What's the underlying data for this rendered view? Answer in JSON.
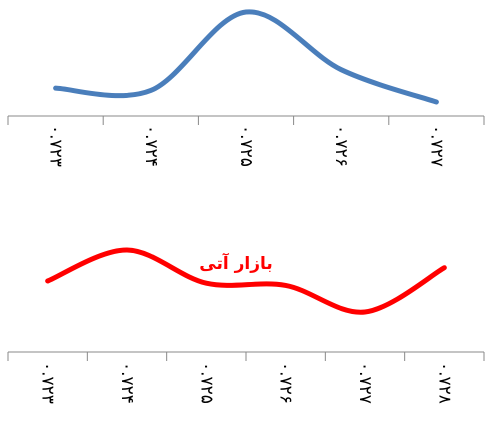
{
  "chart_data": [
    {
      "type": "line",
      "x": [
        "۰.۷۲۳",
        "۰.۷۲۴",
        "۰.۷۲۵",
        "۰.۷۲۶",
        "۰.۷۲۷"
      ],
      "series": [
        {
          "values": [
            0.012,
            0.01,
            0.078,
            0.028,
            0.0
          ],
          "color": "#4a7ebb"
        }
      ],
      "title": "",
      "xlabel": "",
      "ylabel": "",
      "smooth": true,
      "grid": false,
      "legend": "none"
    },
    {
      "type": "line",
      "x": [
        "۰.۷۲۳",
        "۰.۷۲۴",
        "۰.۷۲۵",
        "۰.۷۲۶",
        "۰.۷۲۷",
        "۰.۷۲۸"
      ],
      "series": [
        {
          "name": "بازار آتی",
          "values": [
            0.016,
            0.03,
            0.015,
            0.014,
            0.002,
            0.022
          ],
          "color": "#ff0000"
        }
      ],
      "title": "",
      "xlabel": "",
      "ylabel": "",
      "smooth": true,
      "grid": false,
      "legend": "inline-label"
    }
  ]
}
